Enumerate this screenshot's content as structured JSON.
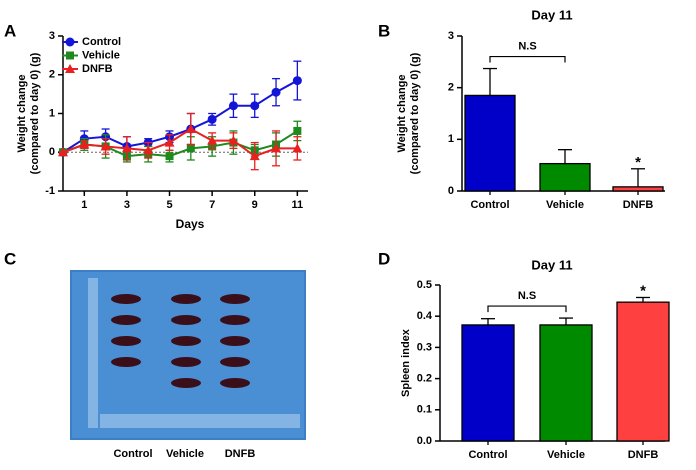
{
  "chart_data": [
    {
      "type": "line",
      "panel": "A",
      "xlabel": "Days",
      "ylabel": [
        "Weight change",
        "(compared to day 0) (g)"
      ],
      "x": [
        0,
        1,
        2,
        3,
        4,
        5,
        6,
        7,
        8,
        9,
        10,
        11
      ],
      "xlim": [
        0,
        11.5
      ],
      "xticks": [
        1,
        3,
        5,
        7,
        9,
        11
      ],
      "ylim": [
        -1,
        3
      ],
      "yticks": [
        -1,
        0,
        1,
        2,
        3
      ],
      "zero_line": true,
      "legend": "top-left",
      "series": [
        {
          "name": "Control",
          "color": "#1515d8",
          "marker": "circle",
          "values": [
            0,
            0.35,
            0.4,
            0.15,
            0.25,
            0.4,
            0.6,
            0.85,
            1.2,
            1.2,
            1.55,
            1.85
          ],
          "errors": [
            0,
            0.2,
            0.2,
            0.25,
            0.1,
            0.15,
            0.4,
            0.15,
            0.3,
            0.3,
            0.35,
            0.5
          ]
        },
        {
          "name": "Vehicle",
          "color": "#1e8a1e",
          "marker": "square",
          "values": [
            0,
            0.2,
            0.15,
            -0.1,
            -0.05,
            -0.1,
            0.1,
            0.15,
            0.25,
            0.05,
            0.2,
            0.55
          ],
          "errors": [
            0,
            0.15,
            0.3,
            0.15,
            0.2,
            0.15,
            0.3,
            0.25,
            0.3,
            0.15,
            0.3,
            0.25
          ]
        },
        {
          "name": "DNFB",
          "color": "#e82020",
          "marker": "triangle",
          "values": [
            0,
            0.2,
            0.15,
            0.1,
            0.05,
            0.25,
            0.6,
            0.3,
            0.3,
            -0.1,
            0.1,
            0.1
          ],
          "errors": [
            0,
            0.1,
            0.2,
            0.3,
            0.2,
            0.2,
            0.4,
            0.2,
            0.2,
            0.35,
            0.45,
            0.3
          ]
        }
      ]
    },
    {
      "type": "bar",
      "panel": "B",
      "title": "Day 11",
      "ylabel": [
        "Weight change",
        "(compared to day 0) (g)"
      ],
      "categories": [
        "Control",
        "Vehicle",
        "DNFB"
      ],
      "values": [
        1.85,
        0.53,
        0.08
      ],
      "errors": [
        0.52,
        0.27,
        0.35
      ],
      "colors": [
        "#0000c8",
        "#008a00",
        "#ff4040"
      ],
      "ylim": [
        0,
        3
      ],
      "yticks": [
        0,
        1,
        2,
        3
      ],
      "annotations": [
        {
          "text": "N.S",
          "from": "Control",
          "to": "Vehicle"
        },
        {
          "text": "*",
          "category": "DNFB"
        }
      ]
    },
    {
      "type": "bar",
      "panel": "D",
      "title": "Day 11",
      "ylabel": "Spleen index",
      "categories": [
        "Control",
        "Vehicle",
        "DNFB"
      ],
      "values": [
        0.372,
        0.372,
        0.445
      ],
      "errors": [
        0.02,
        0.022,
        0.015
      ],
      "colors": [
        "#0000c8",
        "#008a00",
        "#ff4040"
      ],
      "ylim": [
        0,
        0.5
      ],
      "yticks": [
        {
          "value": 0,
          "label": "0.0"
        },
        0.1,
        0.2,
        0.3,
        0.4,
        0.5
      ],
      "annotations": [
        {
          "text": "N.S",
          "from": "Control",
          "to": "Vehicle"
        },
        {
          "text": "*",
          "category": "DNFB"
        }
      ]
    }
  ],
  "photo": {
    "panel": "C",
    "labels": [
      "Control",
      "Vehicle",
      "DNFB"
    ]
  }
}
